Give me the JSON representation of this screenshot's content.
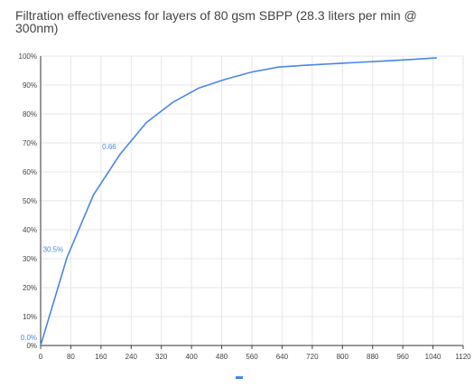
{
  "chart_data": {
    "type": "line",
    "title": "Filtration effectiveness for layers of 80 gsm SBPP (28.3 liters per min @ 300nm)",
    "xlabel": "",
    "ylabel": "",
    "x": [
      0,
      70,
      140,
      210,
      280,
      350,
      420,
      490,
      560,
      630,
      700,
      770,
      840,
      910,
      980,
      1050
    ],
    "series": [
      {
        "values": [
          0,
          30.5,
          52,
          66,
          77,
          84,
          89,
          92,
          94.5,
          96.2,
          96.8,
          97.3,
          97.8,
          98.3,
          98.8,
          99.4
        ]
      }
    ],
    "x_ticks": [
      0,
      80,
      160,
      240,
      320,
      400,
      480,
      560,
      640,
      720,
      800,
      880,
      960,
      1040,
      1120
    ],
    "y_ticks": [
      "0%",
      "10%",
      "20%",
      "30%",
      "40%",
      "50%",
      "60%",
      "70%",
      "80%",
      "90%",
      "100%"
    ],
    "xlim": [
      0,
      1120
    ],
    "ylim": [
      0,
      100
    ],
    "grid": true,
    "data_labels": [
      {
        "text": "0.0%",
        "x": 0,
        "y": 0
      },
      {
        "text": "30.5%",
        "x": 70,
        "y": 30.5
      },
      {
        "text": "0.66",
        "x": 210,
        "y": 66
      }
    ],
    "legend": "bottom",
    "line_color": "#4a86e8"
  }
}
